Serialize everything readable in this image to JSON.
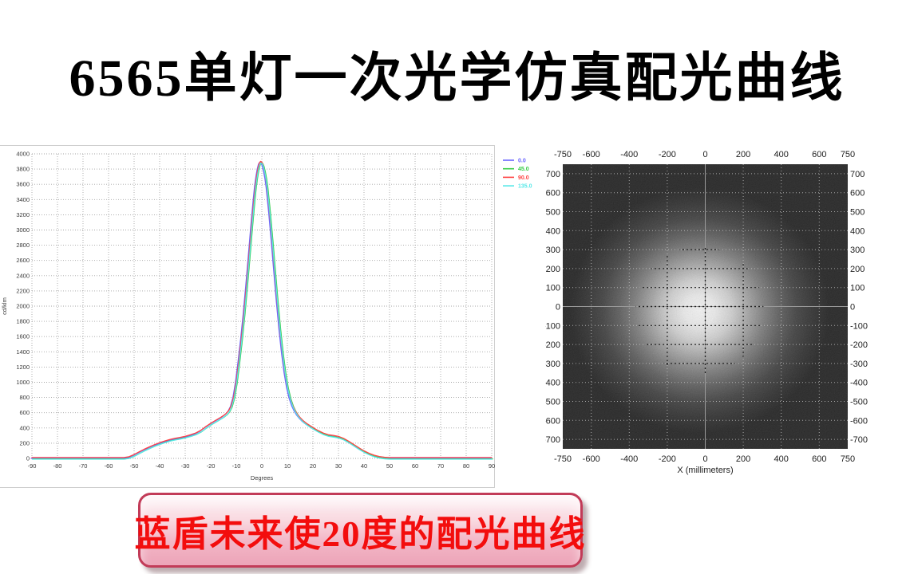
{
  "title": "6565单灯一次光学仿真配光曲线",
  "caption": {
    "text": "蓝盾未来使20度的配光曲线",
    "text_color": "#f30d0d",
    "border_color": "#c23b58",
    "bg_top": "#fdf0f4",
    "bg_bottom": "#eca4b8"
  },
  "chart_data": [
    {
      "type": "line",
      "title": "",
      "xlabel": "Degrees",
      "ylabel": "cd/klm",
      "xlim": [
        -90,
        90
      ],
      "ylim": [
        0,
        4000
      ],
      "grid": true,
      "legend_position": "top-right-outside",
      "xticks": [
        -90,
        -80,
        -70,
        -60,
        -50,
        -40,
        -30,
        -20,
        -10,
        0,
        10,
        20,
        30,
        40,
        50,
        60,
        70,
        80,
        90
      ],
      "yticks": [
        0,
        200,
        400,
        600,
        800,
        1000,
        1200,
        1400,
        1600,
        1800,
        2000,
        2200,
        2400,
        2600,
        2800,
        3000,
        3200,
        3400,
        3600,
        3800,
        4000
      ],
      "series": [
        {
          "name": "0.0",
          "color": "#6b66ff",
          "dx": -1.0,
          "dy": 0
        },
        {
          "name": "45.0",
          "color": "#36cc44",
          "dx": 1.2,
          "dy": 0.6
        },
        {
          "name": "90.0",
          "color": "#ff4545",
          "dx": 0,
          "dy": -1.1
        },
        {
          "name": "135.0",
          "color": "#57e8e8",
          "dx": 0.5,
          "dy": 1.0
        }
      ],
      "x": [
        -90,
        -70,
        -60,
        -54,
        -52,
        -50,
        -48,
        -46,
        -44,
        -42,
        -40,
        -38,
        -36,
        -34,
        -32,
        -30,
        -28,
        -26,
        -24,
        -22,
        -20,
        -18,
        -16,
        -15,
        -14,
        -13,
        -12,
        -11,
        -10,
        -9,
        -8,
        -7,
        -6,
        -5,
        -4,
        -3,
        -2.5,
        -2,
        -1.5,
        -1,
        -0.5,
        0,
        0.5,
        1,
        1.5,
        2,
        3,
        4,
        5,
        6,
        7,
        8,
        9,
        10,
        11,
        12,
        13,
        14,
        15,
        16,
        17,
        18,
        20,
        22,
        24,
        26,
        28,
        30,
        32,
        34,
        36,
        38,
        40,
        42,
        44,
        46,
        48,
        50,
        60,
        90
      ],
      "values": [
        0,
        0,
        0,
        0,
        10,
        40,
        75,
        110,
        140,
        170,
        195,
        218,
        238,
        252,
        265,
        280,
        298,
        320,
        355,
        405,
        450,
        490,
        530,
        552,
        578,
        615,
        680,
        800,
        1000,
        1270,
        1560,
        1890,
        2260,
        2650,
        3050,
        3420,
        3580,
        3700,
        3800,
        3865,
        3890,
        3880,
        3840,
        3770,
        3680,
        3560,
        3230,
        2850,
        2450,
        2060,
        1700,
        1390,
        1130,
        930,
        790,
        690,
        620,
        565,
        525,
        490,
        462,
        438,
        395,
        355,
        322,
        300,
        290,
        278,
        252,
        215,
        172,
        128,
        88,
        55,
        30,
        14,
        4,
        0,
        0,
        0
      ]
    },
    {
      "type": "heatmap",
      "title": "",
      "xlabel": "X (millimeters)",
      "xlim": [
        -750,
        750
      ],
      "ylim": [
        -750,
        750
      ],
      "xticks": [
        -750,
        -600,
        -400,
        -200,
        0,
        200,
        400,
        600,
        750
      ],
      "yticks": [
        700,
        600,
        500,
        400,
        300,
        200,
        100,
        0,
        -100,
        -200,
        -300,
        -400,
        -500,
        -600,
        -700
      ],
      "grid": true,
      "crosshair": [
        0,
        0
      ],
      "spot_center": [
        -30,
        -20
      ],
      "spot_core_radius_mm": 250,
      "spot_glow_radius_mm": 680,
      "background": "#0e0e0e"
    }
  ]
}
